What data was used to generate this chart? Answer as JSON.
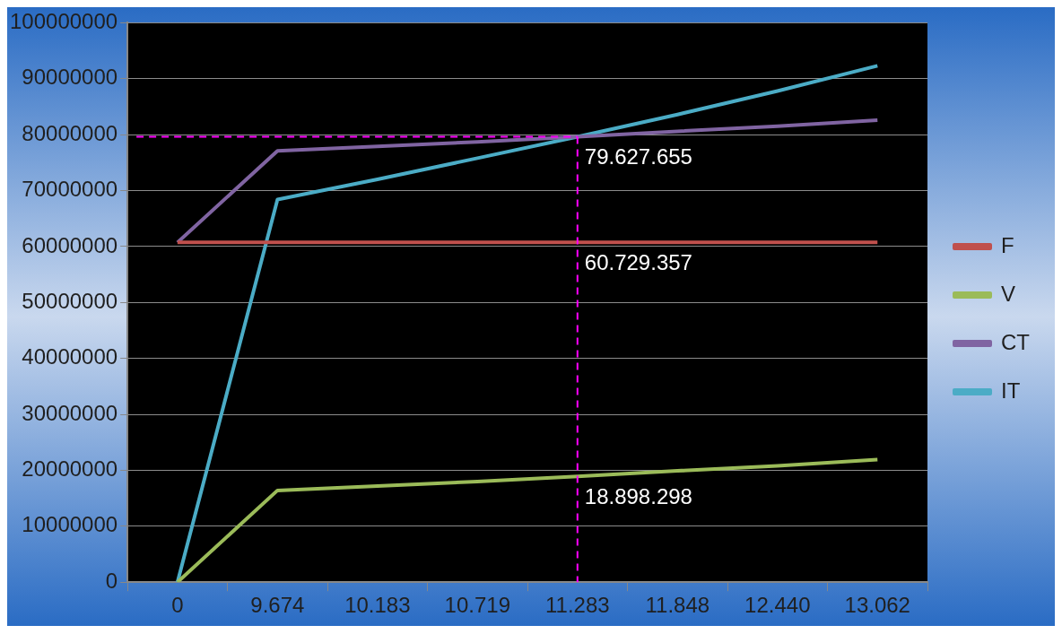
{
  "chart_data": {
    "type": "line",
    "categories": [
      "0",
      "9.674",
      "10.183",
      "10.719",
      "11.283",
      "11.848",
      "12.440",
      "13.062"
    ],
    "series": [
      {
        "name": "F",
        "color": "#c0504d",
        "values": [
          60729357,
          60729357,
          60729357,
          60729357,
          60729357,
          60729357,
          60729357,
          60729357
        ]
      },
      {
        "name": "V",
        "color": "#9bbb59",
        "values": [
          0,
          16400000,
          17200000,
          18000000,
          18898298,
          19900000,
          20800000,
          21900000
        ]
      },
      {
        "name": "CT",
        "color": "#8064a2",
        "values": [
          60729357,
          77100000,
          77900000,
          78700000,
          79627655,
          80600000,
          81500000,
          82600000
        ]
      },
      {
        "name": "IT",
        "color": "#4bacc6",
        "values": [
          0,
          68400000,
          72000000,
          75800000,
          79627655,
          83600000,
          87800000,
          92300000
        ]
      }
    ],
    "ylim": [
      0,
      100000000
    ],
    "yticks": [
      0,
      10000000,
      20000000,
      30000000,
      40000000,
      50000000,
      60000000,
      70000000,
      80000000,
      90000000,
      100000000
    ],
    "grid": "y",
    "legend": "right",
    "marker": "none",
    "line_style": "solid",
    "ref_lines": [
      {
        "axis": "y",
        "value": 79627655,
        "color": "#ff00ff",
        "line_style": "dashed"
      },
      {
        "axis": "x",
        "value": "11.283",
        "color": "#ff00ff",
        "line_style": "dashed"
      }
    ],
    "annotations": [
      {
        "text": "79.627.655",
        "x": "11.283",
        "y": 79627655
      },
      {
        "text": "60.729.357",
        "x": "11.283",
        "y": 60729357
      },
      {
        "text": "18.898.298",
        "x": "11.283",
        "y": 18898298
      }
    ]
  }
}
